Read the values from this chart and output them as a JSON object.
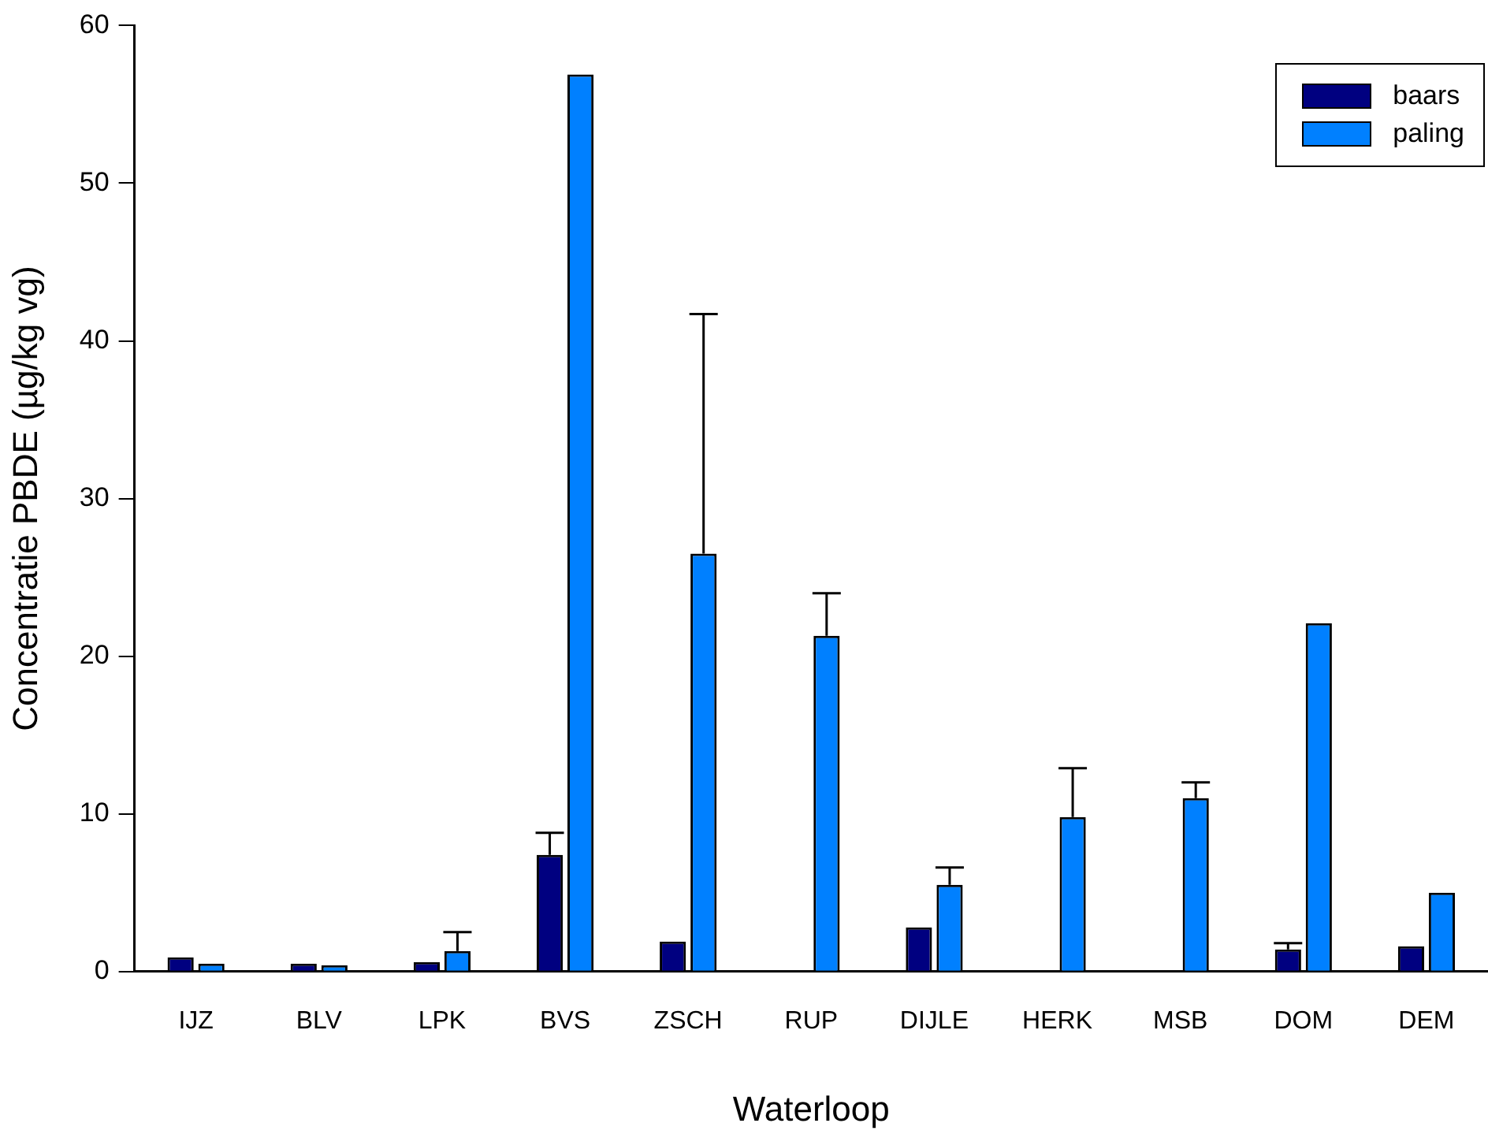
{
  "chart_data": {
    "type": "bar",
    "xlabel": "Waterloop",
    "ylabel": "Concentratie PBDE (µg/kg vg)",
    "categories": [
      "IJZ",
      "BLV",
      "LPK",
      "BVS",
      "ZSCH",
      "RUP",
      "DIJLE",
      "HERK",
      "MSB",
      "DOM",
      "DEM"
    ],
    "series": [
      {
        "name": "baars",
        "color": "#000080",
        "values": [
          0.9,
          0.5,
          0.6,
          7.4,
          1.9,
          null,
          2.8,
          null,
          null,
          1.4,
          1.6
        ],
        "errors": [
          null,
          null,
          null,
          [
            7.4,
            8.8
          ],
          null,
          null,
          null,
          null,
          null,
          [
            1.4,
            1.8
          ],
          null
        ]
      },
      {
        "name": "paling",
        "color": "#0080ff",
        "values": [
          0.5,
          0.4,
          1.3,
          56.9,
          26.5,
          21.3,
          5.5,
          9.8,
          11.0,
          22.1,
          5.0
        ],
        "errors": [
          null,
          null,
          [
            1.3,
            2.5
          ],
          null,
          [
            26.5,
            41.7
          ],
          [
            21.3,
            24.0
          ],
          [
            5.5,
            6.6
          ],
          [
            9.8,
            12.9
          ],
          [
            11.0,
            12.0
          ],
          null,
          null
        ]
      }
    ],
    "ylim": [
      0,
      60
    ],
    "yticks": [
      0,
      10,
      20,
      30,
      40,
      50,
      60
    ],
    "grid": false,
    "legend": "top right"
  }
}
